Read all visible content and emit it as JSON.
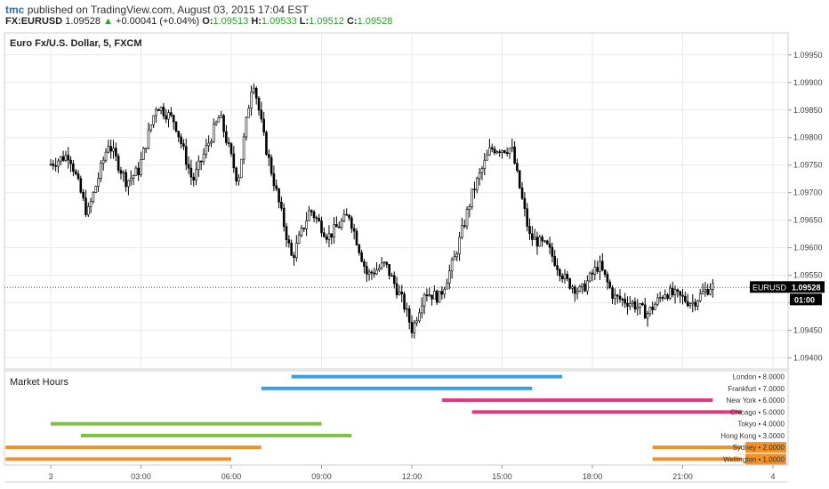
{
  "header": {
    "author": "tmc",
    "published": "published on TradingView.com, August 03, 2015 17:04 EST",
    "symbol": "FX:EURUSD",
    "last": "1.09528",
    "arrow": "▲",
    "change": "+0.00041 (+0.04%)",
    "open_label": "O:",
    "open": "1.09513",
    "high_label": "H:",
    "high": "1.09533",
    "low_label": "L:",
    "low": "1.09512",
    "close_label": "C:",
    "close": "1.09528"
  },
  "chart_data": [
    {
      "type": "candlestick",
      "title": "Euro Fx/U.S. Dollar, 5, FXCM",
      "ylim": [
        1.0938,
        1.0999
      ],
      "y_ticks": [
        "1.09950",
        "1.09900",
        "1.09850",
        "1.09800",
        "1.09750",
        "1.09700",
        "1.09650",
        "1.09600",
        "1.09550",
        "1.09500",
        "1.09450",
        "1.09400"
      ],
      "x_ticks": [
        "3",
        "03:00",
        "06:00",
        "09:00",
        "12:00",
        "15:00",
        "18:00",
        "21:00",
        "4"
      ],
      "last_price_label": "EURUSD",
      "last_price": "1.09528",
      "countdown": "01:00",
      "price_path": [
        {
          "t": 0.0,
          "p": 1.0975
        },
        {
          "t": 0.7,
          "p": 1.0977
        },
        {
          "t": 1.3,
          "p": 1.0966
        },
        {
          "t": 2.0,
          "p": 1.0979
        },
        {
          "t": 2.6,
          "p": 1.0972
        },
        {
          "t": 3.0,
          "p": 1.0974
        },
        {
          "t": 3.6,
          "p": 1.0986
        },
        {
          "t": 4.2,
          "p": 1.0983
        },
        {
          "t": 4.8,
          "p": 1.0972
        },
        {
          "t": 5.7,
          "p": 1.0984
        },
        {
          "t": 6.3,
          "p": 1.0972
        },
        {
          "t": 6.8,
          "p": 1.0991
        },
        {
          "t": 7.2,
          "p": 1.0979
        },
        {
          "t": 8.1,
          "p": 1.0958
        },
        {
          "t": 8.7,
          "p": 1.0967
        },
        {
          "t": 9.3,
          "p": 1.0962
        },
        {
          "t": 10.0,
          "p": 1.0966
        },
        {
          "t": 10.6,
          "p": 1.0955
        },
        {
          "t": 11.2,
          "p": 1.0957
        },
        {
          "t": 11.8,
          "p": 1.095
        },
        {
          "t": 12.1,
          "p": 1.0945
        },
        {
          "t": 12.5,
          "p": 1.0952
        },
        {
          "t": 13.0,
          "p": 1.0951
        },
        {
          "t": 13.5,
          "p": 1.0958
        },
        {
          "t": 14.1,
          "p": 1.097
        },
        {
          "t": 14.7,
          "p": 1.0978
        },
        {
          "t": 15.4,
          "p": 1.0978
        },
        {
          "t": 16.0,
          "p": 1.0962
        },
        {
          "t": 16.6,
          "p": 1.096
        },
        {
          "t": 17.2,
          "p": 1.0954
        },
        {
          "t": 17.7,
          "p": 1.0952
        },
        {
          "t": 18.3,
          "p": 1.0957
        },
        {
          "t": 18.8,
          "p": 1.0951
        },
        {
          "t": 19.4,
          "p": 1.095
        },
        {
          "t": 19.9,
          "p": 1.0948
        },
        {
          "t": 20.5,
          "p": 1.0952
        },
        {
          "t": 21.0,
          "p": 1.0951
        },
        {
          "t": 21.4,
          "p": 1.095
        },
        {
          "t": 22.0,
          "p": 1.0953
        }
      ]
    },
    {
      "type": "bar",
      "title": "Market Hours",
      "ylim": [
        0.5,
        8.5
      ],
      "series": [
        {
          "name": "London",
          "value": "8.0000",
          "level": 8,
          "color": "#3aa0de",
          "sessions": [
            [
              8,
              17
            ]
          ]
        },
        {
          "name": "Frankfurt",
          "value": "7.0000",
          "level": 7,
          "color": "#3aa0de",
          "sessions": [
            [
              7,
              16
            ]
          ]
        },
        {
          "name": "New York",
          "value": "6.0000",
          "level": 6,
          "color": "#e0377f",
          "sessions": [
            [
              13,
              22
            ]
          ]
        },
        {
          "name": "Chicago",
          "value": "5.0000",
          "level": 5,
          "color": "#e0377f",
          "sessions": [
            [
              14,
              23
            ]
          ]
        },
        {
          "name": "Tokyo",
          "value": "4.0000",
          "level": 4,
          "color": "#7dc142",
          "sessions": [
            [
              0,
              9
            ]
          ]
        },
        {
          "name": "Hong Kong",
          "value": "3.0000",
          "level": 3,
          "color": "#7dc142",
          "sessions": [
            [
              1,
              10
            ]
          ]
        },
        {
          "name": "Sydney",
          "value": "2.0000",
          "level": 2,
          "color": "#f0922a",
          "sessions": [
            [
              -1.5,
              7
            ],
            [
              20,
              23.5
            ]
          ]
        },
        {
          "name": "Wellington",
          "value": "1.0000",
          "level": 1,
          "color": "#f0922a",
          "sessions": [
            [
              -1.5,
              6
            ],
            [
              20,
              23.5
            ]
          ]
        }
      ]
    }
  ],
  "colors": {
    "candle_up": "#ffffff",
    "candle_down": "#000000",
    "candle_border": "#000000",
    "grid": "#e9e9e9",
    "axis_text": "#444444",
    "price_label_bg": "#000000",
    "session_label_bg": "#f0922a"
  }
}
